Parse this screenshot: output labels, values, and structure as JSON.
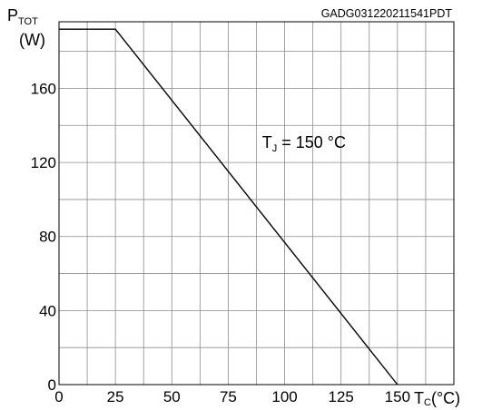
{
  "document_code": "GADG031220211541PDT",
  "chart_data": {
    "type": "line",
    "title": "",
    "ylabel": {
      "main": "P",
      "sub": "TOT",
      "unit": "(W)"
    },
    "xlabel": {
      "main": "T",
      "sub": "C",
      "unit": "(°C)"
    },
    "xlim": [
      0,
      175
    ],
    "ylim": [
      0,
      196
    ],
    "x_ticks": [
      0,
      25,
      50,
      75,
      100,
      125,
      150
    ],
    "y_ticks": [
      0,
      40,
      80,
      120,
      160
    ],
    "x_minor_step": 12.5,
    "y_minor_step": 20,
    "grid": true,
    "series": [
      {
        "x": [
          0,
          25,
          150
        ],
        "y": [
          192,
          192,
          0
        ]
      }
    ],
    "annotation": {
      "text_main": "T",
      "text_sub": "J",
      "text_rest": " = 150 °C",
      "x": 90,
      "y": 128
    }
  }
}
